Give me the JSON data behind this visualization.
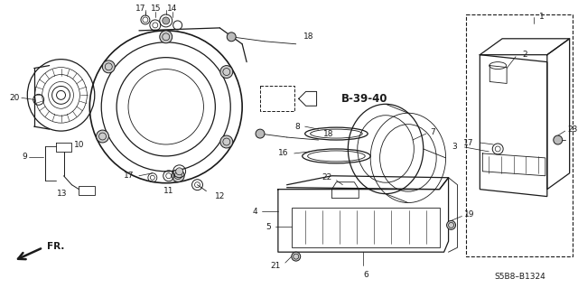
{
  "bg_color": "#ffffff",
  "diagram_color": "#1a1a1a",
  "bold_label": "B-39-40",
  "ref_code": "S5B8–B1324",
  "fr_label": "FR.",
  "label_fontsize": 6.5,
  "bold_fontsize": 8.5
}
